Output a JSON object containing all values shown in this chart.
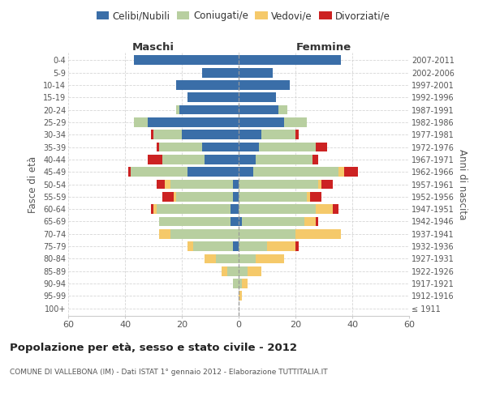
{
  "age_groups": [
    "100+",
    "95-99",
    "90-94",
    "85-89",
    "80-84",
    "75-79",
    "70-74",
    "65-69",
    "60-64",
    "55-59",
    "50-54",
    "45-49",
    "40-44",
    "35-39",
    "30-34",
    "25-29",
    "20-24",
    "15-19",
    "10-14",
    "5-9",
    "0-4"
  ],
  "birth_years": [
    "≤ 1911",
    "1912-1916",
    "1917-1921",
    "1922-1926",
    "1927-1931",
    "1932-1936",
    "1937-1941",
    "1942-1946",
    "1947-1951",
    "1952-1956",
    "1957-1961",
    "1962-1966",
    "1967-1971",
    "1972-1976",
    "1977-1981",
    "1982-1986",
    "1987-1991",
    "1992-1996",
    "1997-2001",
    "2002-2006",
    "2007-2011"
  ],
  "male": {
    "celibi": [
      0,
      0,
      0,
      0,
      0,
      2,
      0,
      3,
      3,
      2,
      2,
      18,
      12,
      13,
      20,
      32,
      21,
      18,
      22,
      13,
      37
    ],
    "coniugati": [
      0,
      0,
      2,
      4,
      8,
      14,
      24,
      25,
      26,
      20,
      22,
      20,
      15,
      15,
      10,
      5,
      1,
      0,
      0,
      0,
      0
    ],
    "vedovi": [
      0,
      0,
      0,
      2,
      4,
      2,
      4,
      0,
      1,
      1,
      2,
      0,
      0,
      0,
      0,
      0,
      0,
      0,
      0,
      0,
      0
    ],
    "divorziati": [
      0,
      0,
      0,
      0,
      0,
      0,
      0,
      0,
      1,
      4,
      3,
      1,
      5,
      1,
      1,
      0,
      0,
      0,
      0,
      0,
      0
    ]
  },
  "female": {
    "nubili": [
      0,
      0,
      0,
      0,
      0,
      0,
      0,
      1,
      0,
      0,
      0,
      5,
      6,
      7,
      8,
      16,
      14,
      13,
      18,
      12,
      36
    ],
    "coniugate": [
      0,
      0,
      1,
      3,
      6,
      10,
      20,
      22,
      27,
      24,
      28,
      30,
      20,
      20,
      12,
      8,
      3,
      0,
      0,
      0,
      0
    ],
    "vedove": [
      0,
      1,
      2,
      5,
      10,
      10,
      16,
      4,
      6,
      1,
      1,
      2,
      0,
      0,
      0,
      0,
      0,
      0,
      0,
      0,
      0
    ],
    "divorziate": [
      0,
      0,
      0,
      0,
      0,
      1,
      0,
      1,
      2,
      4,
      4,
      5,
      2,
      4,
      1,
      0,
      0,
      0,
      0,
      0,
      0
    ]
  },
  "colors": {
    "celibi": "#3a6ea8",
    "coniugati": "#b8cfa0",
    "vedovi": "#f5c96a",
    "divorziati": "#cc2222"
  },
  "xlim": 60,
  "title": "Popolazione per età, sesso e stato civile - 2012",
  "subtitle": "COMUNE DI VALLEBONA (IM) - Dati ISTAT 1° gennaio 2012 - Elaborazione TUTTITALIA.IT",
  "ylabel_left": "Fasce di età",
  "ylabel_right": "Anni di nascita",
  "xlabel_left": "Maschi",
  "xlabel_right": "Femmine",
  "bg_color": "#ffffff",
  "grid_color": "#cccccc",
  "text_color": "#555555",
  "title_color": "#222222"
}
